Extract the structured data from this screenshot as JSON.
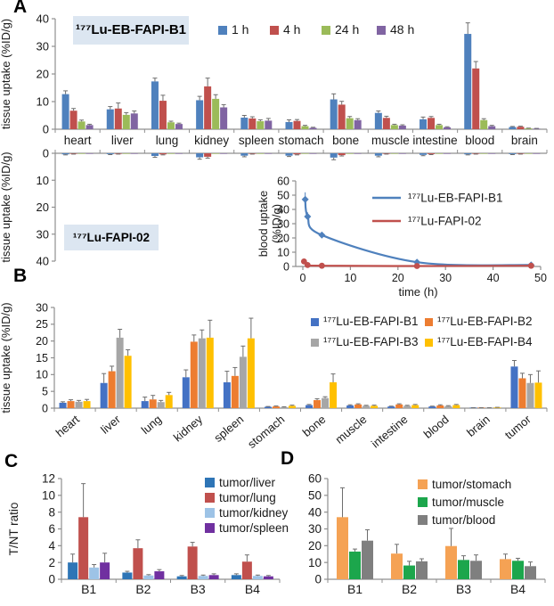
{
  "panel_labels": {
    "a": "A",
    "b": "B",
    "c": "C",
    "d": "D"
  },
  "chart_data": [
    {
      "id": "a-top-biodistribution",
      "type": "bar",
      "title": "¹⁷⁷Lu-EB-FAPI-B1",
      "ylabel": "tissue uptake (%ID/g)",
      "ylim": [
        0,
        40
      ],
      "yticks": [
        0,
        10,
        20,
        30,
        40
      ],
      "categories": [
        "heart",
        "liver",
        "lung",
        "kidney",
        "spleen",
        "stomach",
        "bone",
        "muscle",
        "intestine",
        "blood",
        "brain"
      ],
      "series": [
        {
          "name": "1 h",
          "color": "#4F81BD",
          "values": [
            12.7,
            7.2,
            17.3,
            10.5,
            4.2,
            2.6,
            10.8,
            5.9,
            3.6,
            34.5,
            0.8
          ],
          "errors": [
            1.2,
            1.0,
            1.2,
            1.4,
            0.8,
            0.8,
            2.0,
            0.7,
            0.8,
            4.0,
            0.2
          ]
        },
        {
          "name": "4 h",
          "color": "#C0504D",
          "values": [
            6.7,
            7.5,
            10.3,
            15.5,
            3.9,
            3.0,
            8.9,
            4.1,
            4.1,
            22.0,
            0.9
          ],
          "errors": [
            0.8,
            2.0,
            2.0,
            3.0,
            0.6,
            0.5,
            1.2,
            0.6,
            0.5,
            2.5,
            0.2
          ]
        },
        {
          "name": "24 h",
          "color": "#9BBB59",
          "values": [
            2.8,
            5.2,
            2.5,
            11.0,
            2.9,
            1.1,
            4.0,
            1.5,
            1.5,
            3.3,
            0.3
          ],
          "errors": [
            0.5,
            0.8,
            0.4,
            1.5,
            0.5,
            0.3,
            0.6,
            0.3,
            0.3,
            0.5,
            0.1
          ]
        },
        {
          "name": "48 h",
          "color": "#8064A2",
          "values": [
            1.5,
            5.7,
            1.9,
            7.9,
            3.1,
            0.5,
            3.3,
            1.3,
            0.7,
            1.1,
            0.2
          ],
          "errors": [
            0.3,
            0.9,
            0.3,
            1.0,
            0.8,
            0.2,
            0.5,
            0.3,
            0.2,
            0.3,
            0.1
          ]
        }
      ],
      "legend_position": "top"
    },
    {
      "id": "a-bottom-biodistribution",
      "type": "bar",
      "inverted": true,
      "show_legend": false,
      "show_categories": false,
      "title": "¹⁷⁷Lu-FAPI-02",
      "ylabel": "tissue uptake (%ID/g)",
      "ylim": [
        0,
        40
      ],
      "yticks": [
        0,
        10,
        20,
        30,
        40
      ],
      "categories": [
        "heart",
        "liver",
        "lung",
        "kidney",
        "spleen",
        "stomach",
        "bone",
        "muscle",
        "intestine",
        "blood",
        "brain"
      ],
      "series": [
        {
          "name": "1 h",
          "color": "#4F81BD",
          "values": [
            0.4,
            0.3,
            1.0,
            1.5,
            0.9,
            0.9,
            1.6,
            0.9,
            0.6,
            0.4,
            0.3
          ],
          "errors": [
            0.2,
            0.2,
            0.5,
            0.7,
            0.4,
            0.3,
            0.8,
            0.4,
            0.3,
            0.2,
            0.2
          ]
        },
        {
          "name": "4 h",
          "color": "#C0504D",
          "values": [
            0.2,
            0.2,
            0.4,
            1.3,
            0.2,
            0.4,
            0.7,
            0.2,
            0.3,
            0.2,
            0.2
          ],
          "errors": [
            0.1,
            0.1,
            0.2,
            0.5,
            0.1,
            0.2,
            0.3,
            0.1,
            0.2,
            0.1,
            0.1
          ]
        },
        {
          "name": "24 h",
          "color": "#9BBB59",
          "values": [
            0.05,
            0.05,
            0.1,
            0.1,
            0.1,
            0.1,
            0.1,
            0.05,
            0.05,
            0.05,
            0.05
          ],
          "errors": [
            0,
            0,
            0,
            0,
            0,
            0,
            0,
            0,
            0,
            0,
            0
          ]
        },
        {
          "name": "48 h",
          "color": "#8064A2",
          "values": [
            0.05,
            0.05,
            0.05,
            0.1,
            0.05,
            0.05,
            0.05,
            0.05,
            0.05,
            0.05,
            0.05
          ],
          "errors": [
            0,
            0,
            0,
            0,
            0,
            0,
            0,
            0,
            0,
            0,
            0
          ]
        }
      ]
    },
    {
      "id": "a-inset-blood-clearance",
      "type": "line",
      "ylabel_line1": "blood uptake",
      "ylabel_line2": "(%ID/g)",
      "xlabel": "time (h)",
      "ylim": [
        0,
        60
      ],
      "yticks": [
        0,
        10,
        20,
        30,
        40,
        50,
        60
      ],
      "xlim": [
        0,
        50
      ],
      "xticks": [
        0,
        10,
        20,
        30,
        40,
        50
      ],
      "series": [
        {
          "name": "¹⁷⁷Lu-EB-FAPI-B1",
          "color": "#4F81BD",
          "marker": "diamond",
          "x": [
            0.5,
            1,
            4,
            24,
            48
          ],
          "y": [
            47,
            35,
            22,
            3,
            1
          ],
          "errors": [
            5,
            3,
            2,
            1,
            0.5
          ]
        },
        {
          "name": "¹⁷⁷Lu-FAPI-02",
          "color": "#C0504D",
          "marker": "circle",
          "x": [
            0.25,
            1,
            4,
            24,
            48
          ],
          "y": [
            3.5,
            1,
            0.5,
            0.3,
            0.5
          ],
          "errors": [
            1.5,
            0.5,
            0.3,
            0.2,
            0.2
          ]
        }
      ],
      "legend_position": "inside-right"
    },
    {
      "id": "b-biodistribution-comparison",
      "type": "bar",
      "title": "",
      "ylabel": "tissue uptake (%ID/g)",
      "ylim": [
        0,
        30
      ],
      "yticks": [
        0,
        5,
        10,
        15,
        20,
        25,
        30
      ],
      "categories": [
        "heart",
        "liver",
        "lung",
        "kidney",
        "spleen",
        "stomach",
        "bone",
        "muscle",
        "intestine",
        "blood",
        "brain",
        "tumor"
      ],
      "series": [
        {
          "name": "¹⁷⁷Lu-EB-FAPI-B1",
          "color": "#4472C4",
          "values": [
            1.6,
            7.5,
            2.1,
            9.2,
            7.7,
            0.4,
            0.9,
            0.8,
            0.5,
            0.5,
            0.1,
            12.4
          ],
          "errors": [
            0.3,
            2.8,
            1.2,
            2.2,
            3.3,
            0.1,
            0.2,
            0.2,
            0.1,
            0.1,
            0.05,
            1.8
          ]
        },
        {
          "name": "¹⁷⁷Lu-EB-FAPI-B2",
          "color": "#ED7D31",
          "values": [
            2.1,
            11.0,
            2.6,
            19.8,
            9.6,
            0.5,
            2.4,
            1.1,
            1.1,
            0.8,
            0.1,
            8.9
          ],
          "errors": [
            0.4,
            1.5,
            1.2,
            2.0,
            2.5,
            0.15,
            0.4,
            0.2,
            0.2,
            0.2,
            0.05,
            1.5
          ]
        },
        {
          "name": "¹⁷⁷Lu-EB-FAPI-B3",
          "color": "#A6A6A6",
          "values": [
            1.9,
            21.0,
            1.8,
            20.8,
            15.3,
            0.3,
            3.0,
            0.7,
            0.7,
            0.6,
            0.1,
            7.5
          ],
          "errors": [
            0.4,
            2.5,
            0.5,
            2.5,
            3.2,
            0.1,
            0.4,
            0.15,
            0.15,
            0.15,
            0.05,
            2.5
          ]
        },
        {
          "name": "¹⁷⁷Lu-EB-FAPI-B4",
          "color": "#FFC000",
          "values": [
            2.1,
            15.6,
            3.9,
            21.0,
            20.8,
            0.7,
            7.7,
            0.7,
            0.9,
            0.9,
            0.2,
            7.6
          ],
          "errors": [
            0.5,
            1.8,
            0.8,
            5.2,
            6.0,
            0.2,
            2.5,
            0.2,
            0.2,
            0.2,
            0.05,
            3.5
          ]
        }
      ],
      "legend_position": "top-right"
    },
    {
      "id": "c-tumor-to-nontarget-ratios",
      "type": "bar",
      "ylabel": "T/NT ratio",
      "ylim": [
        0,
        12
      ],
      "yticks": [
        0,
        2,
        4,
        6,
        8,
        10,
        12
      ],
      "categories": [
        "B1",
        "B2",
        "B3",
        "B4"
      ],
      "series": [
        {
          "name": "tumor/liver",
          "color": "#2E75B6",
          "values": [
            2.0,
            0.8,
            0.35,
            0.5
          ],
          "errors": [
            1.0,
            0.15,
            0.1,
            0.15
          ]
        },
        {
          "name": "tumor/lung",
          "color": "#C0504D",
          "values": [
            7.4,
            3.7,
            3.9,
            2.1
          ],
          "errors": [
            4.0,
            1.0,
            0.5,
            0.8
          ]
        },
        {
          "name": "tumor/kidney",
          "color": "#9DC3E6",
          "values": [
            1.4,
            0.45,
            0.4,
            0.4
          ],
          "errors": [
            0.35,
            0.1,
            0.1,
            0.1
          ]
        },
        {
          "name": "tumor/spleen",
          "color": "#7030A0",
          "values": [
            2.0,
            0.95,
            0.5,
            0.35
          ],
          "errors": [
            1.1,
            0.2,
            0.15,
            0.1
          ]
        }
      ],
      "legend_position": "inside-right"
    },
    {
      "id": "d-tumor-to-nontarget-ratios",
      "type": "bar",
      "ylabel": "",
      "ylim": [
        0,
        60
      ],
      "yticks": [
        0,
        10,
        20,
        30,
        40,
        50,
        60
      ],
      "categories": [
        "B1",
        "B2",
        "B3",
        "B4"
      ],
      "series": [
        {
          "name": "tumor/stomach",
          "color": "#F5A254",
          "values": [
            37.0,
            15.3,
            19.8,
            12.0
          ],
          "errors": [
            17.5,
            5.5,
            10.5,
            3.0
          ]
        },
        {
          "name": "tumor/muscle",
          "color": "#1CA64C",
          "values": [
            16.5,
            8.2,
            11.5,
            11.0
          ],
          "errors": [
            1.5,
            2.5,
            2.5,
            1.5
          ]
        },
        {
          "name": "tumor/blood",
          "color": "#7F7F7F",
          "values": [
            23.0,
            10.7,
            11.0,
            7.8
          ],
          "errors": [
            6.5,
            1.5,
            3.5,
            2.5
          ]
        }
      ],
      "legend_position": "inside-right"
    }
  ]
}
